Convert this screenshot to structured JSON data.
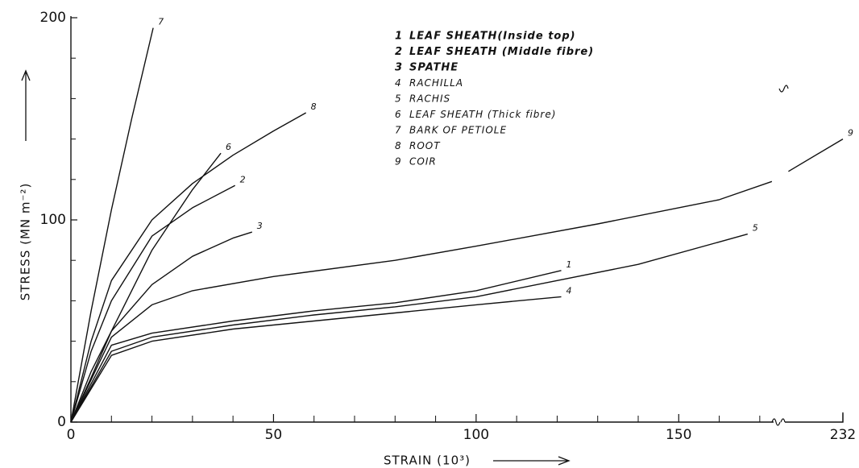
{
  "chart_data": {
    "type": "line",
    "x_label": "STRAIN (10³)",
    "y_label": "STRESS (MN m⁻²)",
    "xlim": [
      0,
      232
    ],
    "ylim": [
      0,
      200
    ],
    "xbreak": [
      175,
      217
    ],
    "xticks": [
      0,
      50,
      100,
      150,
      232
    ],
    "yticks": [
      0,
      100,
      200
    ],
    "xminor": [
      10,
      20,
      30,
      40,
      60,
      70,
      80,
      90,
      110,
      120,
      130,
      140,
      160,
      170
    ],
    "yminor": [
      20,
      40,
      60,
      80,
      120,
      140,
      160,
      180
    ],
    "color": "#111",
    "series": [
      {
        "label": "1",
        "name": "LEAF SHEATH(Inside top)",
        "x": [
          0,
          10,
          20,
          40,
          60,
          80,
          100,
          121
        ],
        "values": [
          0,
          38,
          44,
          50,
          55,
          59,
          65,
          75
        ]
      },
      {
        "label": "2",
        "name": "LEAF SHEATH (Middle fibre)",
        "x": [
          0,
          5,
          10,
          20,
          30,
          40.5
        ],
        "values": [
          0,
          35,
          60,
          92,
          106,
          117
        ]
      },
      {
        "label": "3",
        "name": "SPATHE",
        "x": [
          0,
          5,
          10,
          20,
          30,
          40,
          44.7
        ],
        "values": [
          0,
          25,
          45,
          68,
          82,
          91,
          94
        ]
      },
      {
        "label": "4",
        "name": "RACHILLA",
        "x": [
          0,
          10,
          20,
          40,
          60,
          80,
          100,
          121
        ],
        "values": [
          0,
          33,
          40,
          46,
          50,
          54,
          58,
          62
        ]
      },
      {
        "label": "5",
        "name": "RACHIS",
        "x": [
          0,
          10,
          20,
          40,
          60,
          80,
          100,
          120,
          140,
          167
        ],
        "values": [
          0,
          35,
          42,
          48,
          53,
          57,
          62,
          70,
          78,
          93
        ]
      },
      {
        "label": "6",
        "name": "LEAF SHEATH (Thick fibre)",
        "x": [
          0,
          5,
          10,
          20,
          25,
          30,
          37
        ],
        "values": [
          0,
          22,
          45,
          85,
          100,
          115,
          133
        ]
      },
      {
        "label": "7",
        "name": "BARK OF PETIOLE",
        "x": [
          0,
          5,
          10,
          15,
          20.3
        ],
        "values": [
          0,
          55,
          105,
          150,
          195
        ]
      },
      {
        "label": "8",
        "name": "ROOT",
        "x": [
          0,
          5,
          10,
          20,
          30,
          40,
          50,
          58
        ],
        "values": [
          0,
          40,
          70,
          100,
          118,
          132,
          144,
          153
        ]
      },
      {
        "label": "9",
        "name": "COIR",
        "x": [
          0,
          10,
          20,
          30,
          50,
          80,
          100,
          130,
          160,
          173,
          196,
          219,
          232
        ],
        "values": [
          0,
          42,
          58,
          65,
          72,
          80,
          87,
          98,
          110,
          119,
          null,
          124,
          140
        ]
      }
    ]
  }
}
